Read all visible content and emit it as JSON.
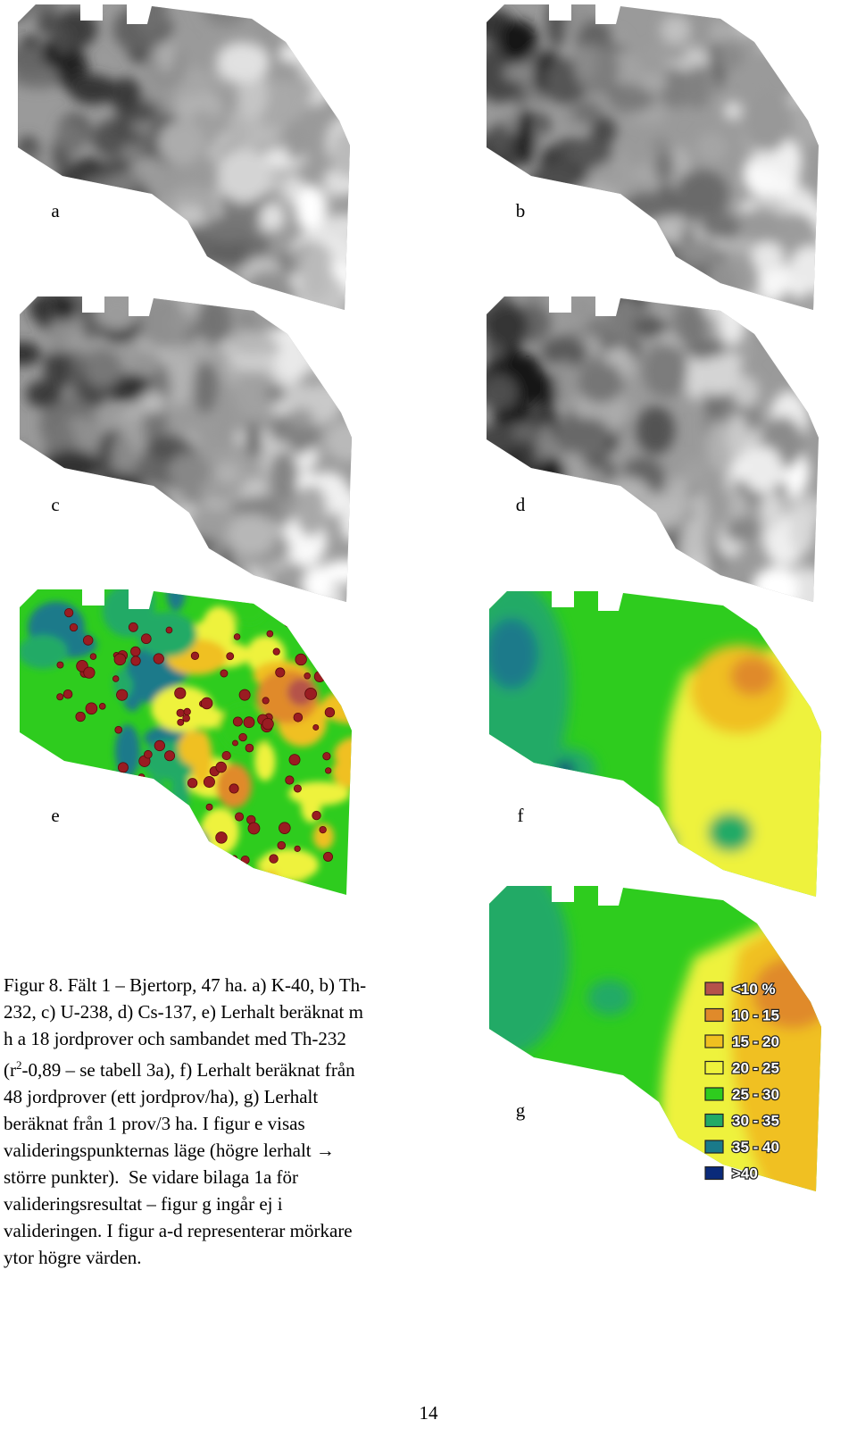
{
  "panels": [
    {
      "label": "a"
    },
    {
      "label": "b"
    },
    {
      "label": "c"
    },
    {
      "label": "d"
    },
    {
      "label": "e"
    },
    {
      "label": "f"
    },
    {
      "label": "g"
    }
  ],
  "caption": {
    "lines": [
      "Figur 8. Fält 1 – Bjertorp, 47 ha. a) K-40, b) Th-",
      "232, c) U-238, d) Cs-137, e) Lerhalt beräknat m",
      "h a 18 jordprover och sambandet med Th-232",
      {
        "pre": "(r",
        "sup": "2",
        "post": "-0,89 – se tabell 3a), f) Lerhalt beräknat från"
      },
      "48 jordprover (ett jordprov/ha), g) Lerhalt",
      "beräknat från 1 prov/3 ha. I figur e visas",
      "valideringspunkternas läge (högre lerhalt →",
      "större punkter).  Se vidare bilaga 1a för",
      "valideringsresultat – figur g ingår ej i",
      "valideringen. I figur a-d representerar mörkare",
      "ytor högre värden."
    ]
  },
  "legend": [
    {
      "label": "<10 %",
      "color": "#b5524a"
    },
    {
      "label": "10 - 15",
      "color": "#e08a2a"
    },
    {
      "label": "15 - 20",
      "color": "#f0c020"
    },
    {
      "label": "20 - 25",
      "color": "#eef23c"
    },
    {
      "label": "25 - 30",
      "color": "#2ecc1e"
    },
    {
      "label": "30 - 35",
      "color": "#22aa66"
    },
    {
      "label": "35 - 40",
      "color": "#1a7a8a"
    },
    {
      "label": ">40",
      "color": "#0a2a7a"
    }
  ],
  "page_number": "14"
}
